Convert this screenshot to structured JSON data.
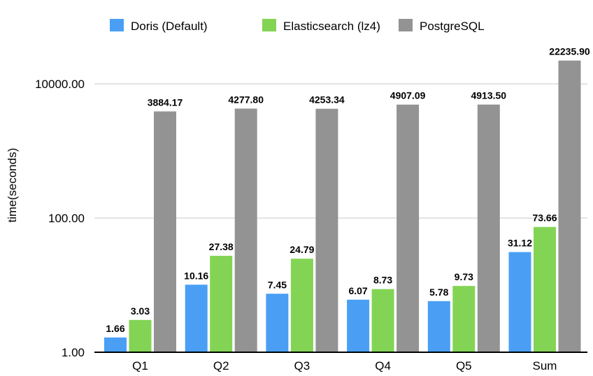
{
  "chart_data": {
    "type": "bar",
    "title": "",
    "xlabel": "",
    "ylabel": "time(seconds)",
    "yscale": "log",
    "ylim": [
      1,
      30000
    ],
    "yticks": [
      1,
      100,
      10000
    ],
    "ytick_labels": [
      "1.00",
      "100.00",
      "10000.00"
    ],
    "grid": true,
    "legend_position": "top",
    "categories": [
      "Q1",
      "Q2",
      "Q3",
      "Q4",
      "Q5",
      "Sum"
    ],
    "series": [
      {
        "name": "Doris (Default)",
        "color": "#4a9ff5",
        "values": [
          1.66,
          10.16,
          7.45,
          6.07,
          5.78,
          31.12
        ],
        "labels": [
          "1.66",
          "10.16",
          "7.45",
          "6.07",
          "5.78",
          "31.12"
        ]
      },
      {
        "name": "Elasticsearch (lz4)",
        "color": "#83d455",
        "values": [
          3.03,
          27.38,
          24.79,
          8.73,
          9.73,
          73.66
        ],
        "labels": [
          "3.03",
          "27.38",
          "24.79",
          "8.73",
          "9.73",
          "73.66"
        ]
      },
      {
        "name": "PostgreSQL",
        "color": "#939393",
        "values": [
          3884.17,
          4277.8,
          4253.34,
          4907.09,
          4913.5,
          22235.9
        ],
        "labels": [
          "3884.17",
          "4277.80",
          "4253.34",
          "4907.09",
          "4913.50",
          "22235.90"
        ]
      }
    ]
  }
}
